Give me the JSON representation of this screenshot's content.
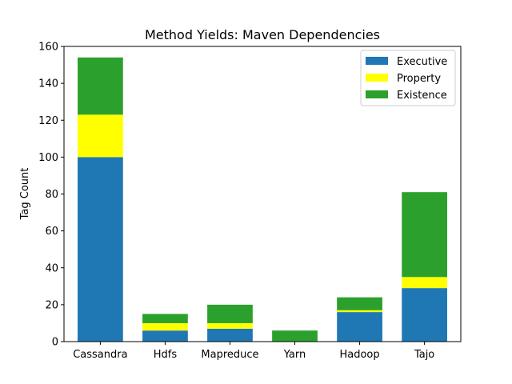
{
  "chart_data": {
    "type": "bar",
    "stacked": true,
    "title": "Method Yields: Maven Dependencies",
    "xlabel": "",
    "ylabel": "Tag Count",
    "ylim": [
      0,
      160
    ],
    "yticks": [
      0,
      20,
      40,
      60,
      80,
      100,
      120,
      140,
      160
    ],
    "grid": false,
    "legend_position": "top-right",
    "categories": [
      "Cassandra",
      "Hdfs",
      "Mapreduce",
      "Yarn",
      "Hadoop",
      "Tajo"
    ],
    "series": [
      {
        "name": "Executive",
        "color": "#1f77b4",
        "values": [
          100,
          6,
          7,
          0,
          16,
          29
        ]
      },
      {
        "name": "Property",
        "color": "#ffff00",
        "values": [
          23,
          4,
          3,
          0,
          1,
          6
        ]
      },
      {
        "name": "Existence",
        "color": "#2ca02c",
        "values": [
          31,
          5,
          10,
          6,
          7,
          46
        ]
      }
    ]
  }
}
